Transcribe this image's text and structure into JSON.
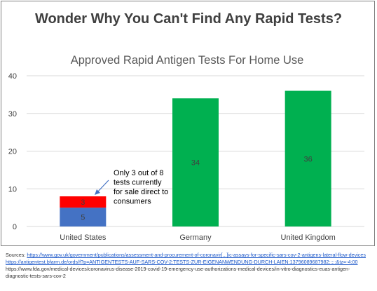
{
  "headline": "Wonder Why You Can't Find Any Rapid Tests?",
  "colors": {
    "us_total": "#ff0000",
    "us_direct": "#4472c4",
    "others": "#00b050",
    "grid": "#d9d9d9",
    "text": "#404040"
  },
  "chart_data": {
    "type": "bar",
    "title": "Approved Rapid Antigen Tests For Home Use",
    "categories": [
      "United States",
      "Germany",
      "United Kingdom"
    ],
    "series": [
      {
        "values": [
          5,
          34,
          36
        ],
        "labels": [
          "5",
          "34",
          "36"
        ]
      },
      {
        "values": [
          3,
          0,
          0
        ],
        "labels": [
          "3",
          "",
          ""
        ]
      }
    ],
    "ylim": [
      0,
      40
    ],
    "yticks": [
      0,
      10,
      20,
      30,
      40
    ],
    "grid": true,
    "annotation": {
      "text_lines": [
        "Only 3 out of 8",
        "tests currently",
        "for sale direct to",
        "consumers"
      ]
    }
  },
  "sources": {
    "label": "Sources:",
    "links": [
      "https://www.gov.uk/government/publications/assessment-and-procurement-of-coronavir[...]ic-assays-for-specific-sars-cov-2-antigens-lateral-flow-devices",
      "https://antigentest.bfarm.de/ords/f?p=ANTIGENTESTS-AUF-SARS-COV-2:TESTS-ZUR-EIGENANWENDUNG-DURCH-LAIEN:13796089687982:::::&tz=-4:00"
    ],
    "plain": "https://www.fda.gov/medical-devices/coronavirus-disease-2019-covid-19-emergency-use-authorizations-medical-devices/in-vitro-diagnostics-euas-antigen-diagnostic-tests-sars-cov-2"
  }
}
